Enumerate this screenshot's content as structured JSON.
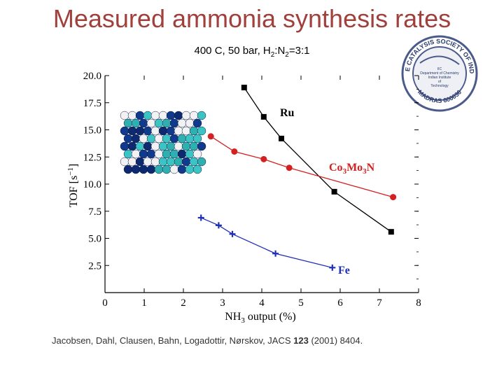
{
  "slide": {
    "title": "Measured ammonia synthesis rates",
    "subtitle": {
      "text1": "400 C, 50 bar, H",
      "sub1": "2",
      "text2": ":N",
      "sub2": "2",
      "text3": "=3:1"
    },
    "citation": {
      "before": "Jacobsen, Dahl, Clausen, Bahn, Logadottir, Nørskov, JACS ",
      "volume": "123",
      "after": " (2001) 8404."
    },
    "logo": {
      "ring_text": "THE CATALYSIS SOCIETY OF INDIA",
      "bottom_text": "MADRAS 600036",
      "inner_lines": [
        "IIC",
        "Department of Chemistry",
        "Indian Institute",
        "of",
        "Technology"
      ]
    }
  },
  "chart_data": {
    "type": "line",
    "xlabel": {
      "main": "NH",
      "sub": "3",
      "rest": " output  (%)"
    },
    "ylabel": {
      "main": "TOF [s",
      "sup": "−1",
      "rest": "]"
    },
    "xlim": [
      0,
      8
    ],
    "ylim": [
      0,
      20
    ],
    "x_ticks": [
      0,
      1,
      2,
      3,
      4,
      5,
      6,
      7,
      8
    ],
    "y_ticks": [
      2.5,
      5.0,
      7.5,
      10.0,
      12.5,
      15.0,
      17.5,
      20.0
    ],
    "x_tick_labels": [
      "0",
      "1",
      "2",
      "3",
      "4",
      "5",
      "6",
      "7",
      "8"
    ],
    "y_tick_labels": [
      "2.5",
      "5.0",
      "7.5",
      "10.0",
      "12.5",
      "15.0",
      "17.5",
      "20.0"
    ],
    "grid": false,
    "series": [
      {
        "name": "Ru",
        "color": "#000000",
        "marker": "square",
        "x": [
          3.55,
          4.05,
          4.5,
          5.85,
          7.3
        ],
        "y": [
          18.9,
          16.2,
          14.2,
          9.3,
          5.6
        ]
      },
      {
        "name_parts": {
          "a": "Co",
          "a_sub": "3",
          "b": "Mo",
          "b_sub": "3",
          "c": "N"
        },
        "color": "#d42020",
        "marker": "circle",
        "x": [
          2.7,
          3.3,
          4.05,
          4.7,
          7.35
        ],
        "y": [
          14.4,
          13.0,
          12.3,
          11.5,
          8.8
        ]
      },
      {
        "name": "Fe",
        "color": "#1f2fb8",
        "marker": "plus",
        "x": [
          2.45,
          2.9,
          3.25,
          4.35,
          5.8
        ],
        "y": [
          6.9,
          6.2,
          5.4,
          3.6,
          2.3
        ]
      }
    ]
  }
}
